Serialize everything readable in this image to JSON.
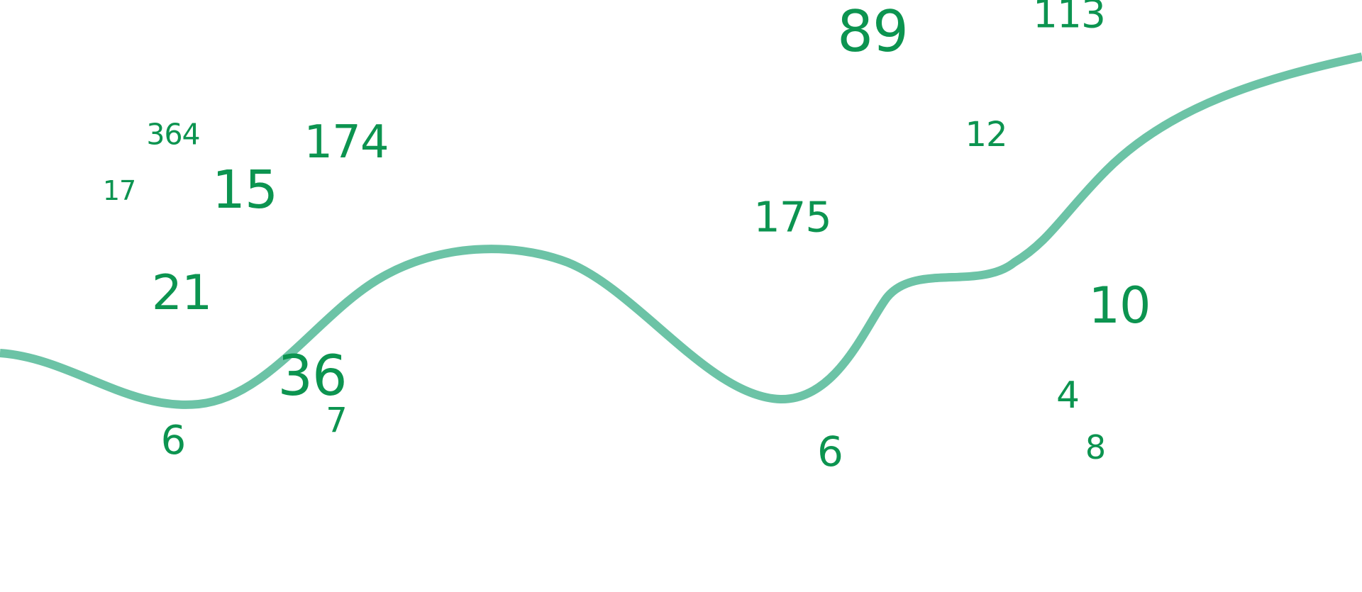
{
  "colors": {
    "numbers": "#0c9450",
    "curve": "#6cc3a6",
    "background": "#ffffff"
  },
  "numbers": [
    "89",
    "113",
    "364",
    "174",
    "12",
    "17",
    "15",
    "175",
    "21",
    "10",
    "36",
    "4",
    "7",
    "6",
    "6",
    "8"
  ]
}
